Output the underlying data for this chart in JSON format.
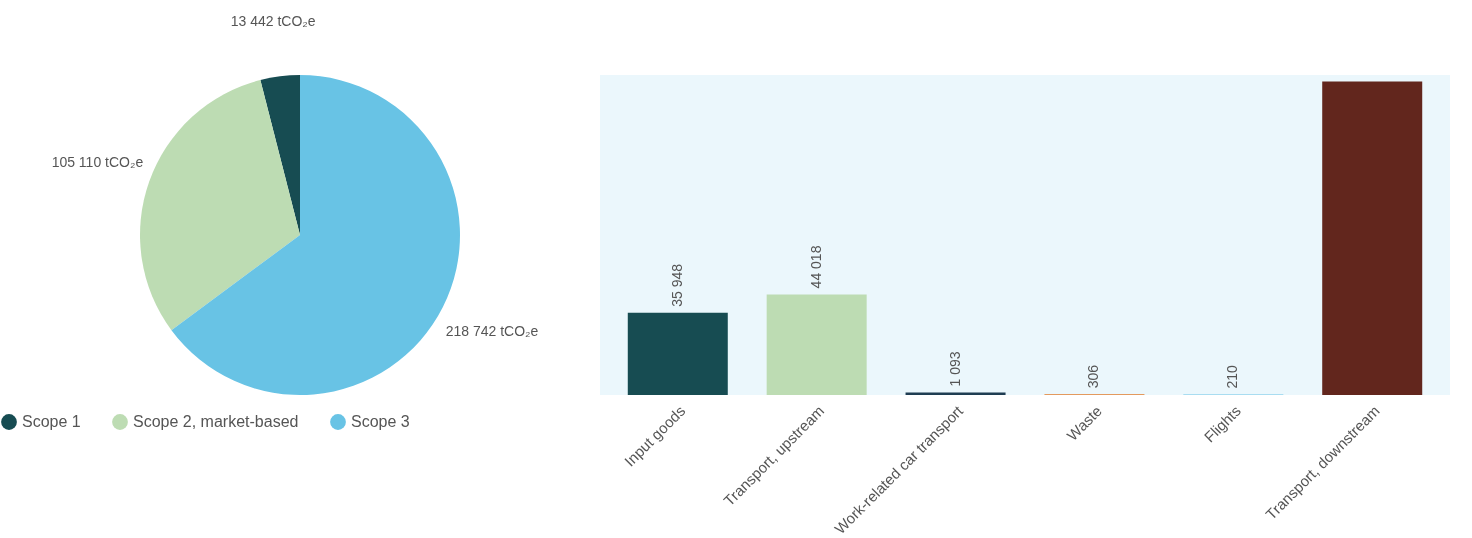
{
  "chart_data": [
    {
      "type": "pie",
      "categories": [
        "Scope 1",
        "Scope 2, market-based",
        "Scope 3"
      ],
      "values": [
        13442,
        105110,
        218742
      ],
      "colors": [
        "#174c52",
        "#bddcb3",
        "#68c3e5"
      ],
      "value_labels": [
        "13 442 tCO₂e",
        "105 110 tCO₂e",
        "218 742 tCO₂e"
      ],
      "legend": "bottom"
    },
    {
      "type": "bar",
      "categories": [
        "Input goods",
        "Transport, upstream",
        "Work-related car transport",
        "Waste",
        "Flights",
        "Transport, downstream"
      ],
      "values": [
        35948,
        44018,
        1093,
        306,
        210,
        137167
      ],
      "colors": [
        "#174c52",
        "#bddcb3",
        "#1f3d52",
        "#e07b2a",
        "#68c3e5",
        "#62261d"
      ],
      "value_labels": [
        "35 948",
        "44 018",
        "1 093",
        "306",
        "210",
        null
      ]
    }
  ]
}
